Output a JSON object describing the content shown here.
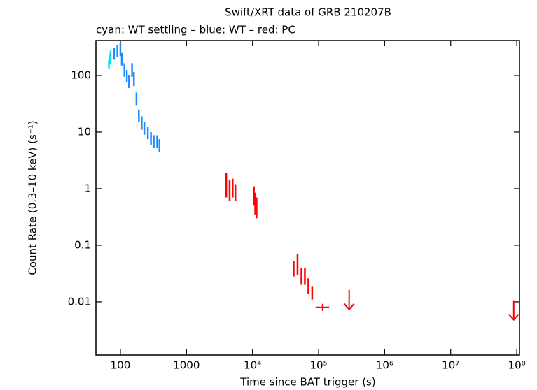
{
  "chart_data": {
    "type": "scatter",
    "title": "Swift/XRT data of GRB 210207B",
    "subtitle": "cyan: WT settling – blue: WT – red: PC",
    "x_label": "Time since BAT trigger (s)",
    "y_label": "Count Rate (0.3–10 keV) (s⁻¹)",
    "log_x": true,
    "log_y": true,
    "xlim": [
      42.6,
      110000000
    ],
    "ylim": [
      0.00115,
      414
    ],
    "xticks": [
      100,
      1000,
      {
        "value": 10000,
        "label": "10⁴"
      },
      {
        "value": 100000,
        "label": "10⁵"
      },
      {
        "value": 1000000,
        "label": "10⁶"
      },
      {
        "value": 10000000,
        "label": "10⁷"
      },
      {
        "value": 100000000,
        "label": "10⁸"
      }
    ],
    "yticks": [
      0.01,
      0.1,
      1,
      10,
      100
    ],
    "series": [
      {
        "color": "#00e5e5",
        "x": [
          67,
          69,
          71
        ],
        "values": [
          160,
          200,
          230
        ],
        "errors": [
          30,
          40,
          45
        ]
      },
      {
        "color": "#1e8cff",
        "x": [
          80,
          90,
          100,
          105,
          115,
          125,
          135,
          150,
          160,
          175,
          190,
          210,
          230,
          260,
          290,
          320,
          360,
          390
        ],
        "values": [
          250,
          280,
          300,
          200,
          130,
          100,
          80,
          130,
          90,
          40,
          20,
          15,
          12,
          10,
          8,
          7,
          7,
          6
        ],
        "errors": [
          60,
          70,
          80,
          50,
          35,
          25,
          20,
          35,
          25,
          10,
          5,
          4,
          3,
          2.5,
          2,
          1.8,
          1.8,
          1.5
        ]
      },
      {
        "color": "#ff0000",
        "x": [
          4000,
          4500,
          5000,
          5500,
          10500,
          11000,
          11500,
          42000,
          48000,
          55000,
          62000,
          70000,
          80000
        ],
        "values": [
          1.3,
          1.0,
          1.1,
          0.9,
          0.8,
          0.6,
          0.5,
          0.04,
          0.05,
          0.03,
          0.03,
          0.02,
          0.015
        ],
        "errors": [
          0.6,
          0.4,
          0.4,
          0.3,
          0.3,
          0.25,
          0.2,
          0.012,
          0.02,
          0.01,
          0.01,
          0.006,
          0.004
        ]
      },
      {
        "color": "#ff0000",
        "x": [
          115000
        ],
        "values": [
          0.008
        ],
        "x_lo": [
          90000
        ],
        "x_hi": [
          145000
        ]
      },
      {
        "color": "#ff0000",
        "upper_limit": true,
        "x": [
          290000,
          90000000
        ],
        "values": [
          0.013,
          0.0085
        ]
      }
    ]
  }
}
